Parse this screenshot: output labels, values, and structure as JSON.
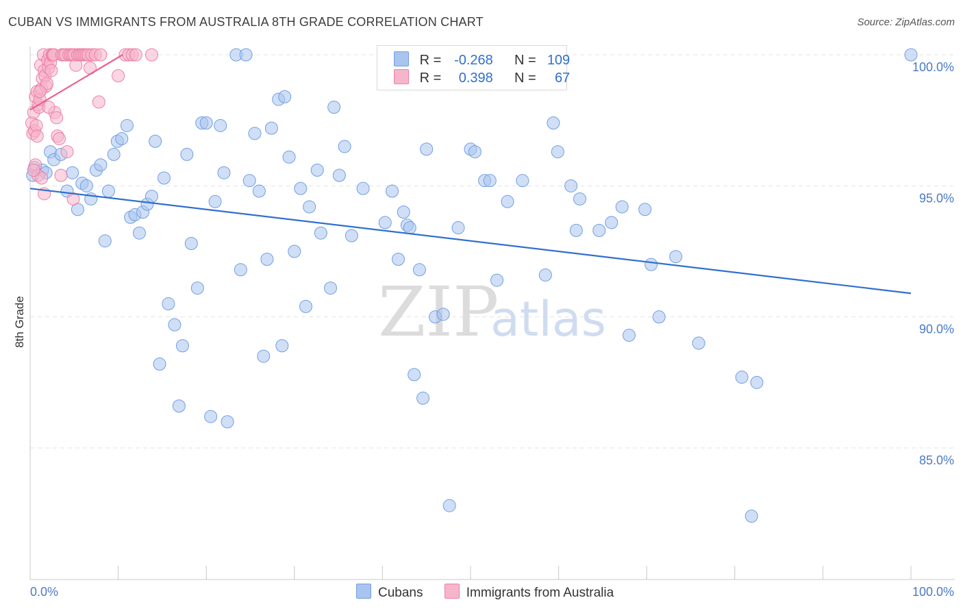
{
  "title": "CUBAN VS IMMIGRANTS FROM AUSTRALIA 8TH GRADE CORRELATION CHART",
  "source": "Source: ZipAtlas.com",
  "watermark": {
    "zip": "ZIP",
    "atlas": "atlas"
  },
  "legend": {
    "rows": [
      {
        "r_label": "R =",
        "r_value": "-0.268",
        "n_label": "N =",
        "n_value": "109",
        "color": "#a9c4ee"
      },
      {
        "r_label": "R =",
        "r_value": "0.398",
        "n_label": "N =",
        "n_value": "67",
        "color": "#f6b5ca"
      }
    ]
  },
  "bottom_legend": [
    {
      "label": "Cubans",
      "color": "#a9c4ee"
    },
    {
      "label": "Immigrants from Australia",
      "color": "#f6b5ca"
    }
  ],
  "chart_data": {
    "type": "scatter",
    "title": "CUBAN VS IMMIGRANTS FROM AUSTRALIA 8TH GRADE CORRELATION CHART",
    "xlabel": "",
    "ylabel": "8th Grade",
    "xlim": [
      0,
      100
    ],
    "ylim": [
      80.5,
      100.5
    ],
    "x_tick_labels": [
      "0.0%",
      "100.0%"
    ],
    "y_ticks": [
      85,
      90,
      95,
      100
    ],
    "y_tick_labels": [
      "85.0%",
      "90.0%",
      "95.0%",
      "100.0%"
    ],
    "grid": true,
    "series": [
      {
        "name": "Cubans",
        "color": "#6f9ee3",
        "fill": "#a9c4ee",
        "trend": {
          "x": [
            0,
            100
          ],
          "y": [
            94.9,
            90.9
          ],
          "color": "#2f6fd0"
        },
        "points": [
          [
            0.3,
            95.4
          ],
          [
            0.5,
            95.7
          ],
          [
            1.4,
            95.6
          ],
          [
            1.8,
            95.5
          ],
          [
            2.3,
            96.3
          ],
          [
            2.7,
            96.0
          ],
          [
            3.5,
            96.2
          ],
          [
            4.2,
            94.8
          ],
          [
            4.8,
            95.5
          ],
          [
            5.4,
            94.1
          ],
          [
            5.9,
            95.1
          ],
          [
            6.4,
            95.0
          ],
          [
            6.9,
            94.5
          ],
          [
            7.5,
            95.6
          ],
          [
            8.0,
            95.8
          ],
          [
            8.5,
            92.9
          ],
          [
            8.9,
            94.8
          ],
          [
            9.5,
            96.2
          ],
          [
            9.9,
            96.7
          ],
          [
            10.4,
            96.8
          ],
          [
            11.0,
            97.3
          ],
          [
            11.4,
            93.8
          ],
          [
            11.9,
            93.9
          ],
          [
            12.4,
            93.2
          ],
          [
            12.8,
            94.0
          ],
          [
            13.3,
            94.3
          ],
          [
            13.8,
            94.6
          ],
          [
            14.2,
            96.7
          ],
          [
            14.7,
            88.2
          ],
          [
            15.2,
            95.3
          ],
          [
            15.7,
            90.5
          ],
          [
            16.4,
            89.7
          ],
          [
            16.9,
            86.6
          ],
          [
            17.3,
            88.9
          ],
          [
            17.8,
            96.2
          ],
          [
            18.3,
            92.8
          ],
          [
            19.0,
            91.1
          ],
          [
            19.5,
            97.4
          ],
          [
            20.0,
            97.4
          ],
          [
            20.5,
            86.2
          ],
          [
            21.0,
            94.4
          ],
          [
            21.6,
            97.3
          ],
          [
            22.0,
            95.5
          ],
          [
            22.4,
            86.0
          ],
          [
            23.4,
            100.0
          ],
          [
            23.9,
            91.8
          ],
          [
            24.5,
            100.0
          ],
          [
            24.9,
            95.2
          ],
          [
            25.5,
            97.0
          ],
          [
            26.0,
            94.8
          ],
          [
            26.5,
            88.5
          ],
          [
            26.9,
            92.2
          ],
          [
            27.4,
            97.2
          ],
          [
            28.2,
            98.3
          ],
          [
            28.6,
            88.9
          ],
          [
            28.9,
            98.4
          ],
          [
            29.4,
            96.1
          ],
          [
            30.0,
            92.5
          ],
          [
            30.7,
            94.9
          ],
          [
            31.3,
            90.4
          ],
          [
            31.7,
            94.2
          ],
          [
            32.6,
            95.6
          ],
          [
            33.0,
            93.2
          ],
          [
            34.1,
            91.1
          ],
          [
            34.5,
            98.0
          ],
          [
            35.1,
            95.4
          ],
          [
            35.7,
            96.5
          ],
          [
            36.5,
            93.1
          ],
          [
            37.8,
            94.9
          ],
          [
            40.3,
            93.6
          ],
          [
            41.1,
            94.8
          ],
          [
            41.8,
            92.2
          ],
          [
            42.4,
            94.0
          ],
          [
            42.8,
            93.5
          ],
          [
            43.1,
            93.4
          ],
          [
            43.6,
            87.8
          ],
          [
            44.2,
            91.8
          ],
          [
            44.6,
            86.9
          ],
          [
            45.0,
            96.4
          ],
          [
            46.0,
            90.0
          ],
          [
            46.9,
            90.1
          ],
          [
            47.6,
            82.8
          ],
          [
            48.6,
            93.4
          ],
          [
            50.0,
            96.4
          ],
          [
            50.5,
            96.3
          ],
          [
            51.6,
            95.2
          ],
          [
            52.2,
            95.2
          ],
          [
            53.0,
            91.4
          ],
          [
            54.2,
            94.4
          ],
          [
            55.9,
            95.2
          ],
          [
            58.5,
            91.6
          ],
          [
            59.4,
            97.4
          ],
          [
            59.9,
            96.3
          ],
          [
            61.4,
            95.0
          ],
          [
            62.0,
            93.3
          ],
          [
            62.4,
            94.5
          ],
          [
            64.6,
            93.3
          ],
          [
            66.0,
            93.6
          ],
          [
            67.2,
            94.2
          ],
          [
            68.0,
            89.3
          ],
          [
            69.8,
            94.1
          ],
          [
            70.5,
            92.0
          ],
          [
            71.4,
            90.0
          ],
          [
            73.3,
            92.3
          ],
          [
            75.9,
            89.0
          ],
          [
            80.8,
            87.7
          ],
          [
            81.9,
            82.4
          ],
          [
            82.5,
            87.5
          ],
          [
            100.0,
            100.0
          ]
        ]
      },
      {
        "name": "Immigrants from Australia",
        "color": "#ec7fa3",
        "fill": "#f6b5ca",
        "trend": {
          "x": [
            0,
            10.5
          ],
          "y": [
            97.9,
            100.0
          ],
          "color": "#e8628f"
        },
        "points": [
          [
            0.2,
            97.4
          ],
          [
            0.3,
            97.0
          ],
          [
            0.4,
            97.8
          ],
          [
            0.5,
            97.1
          ],
          [
            0.6,
            98.4
          ],
          [
            0.7,
            97.3
          ],
          [
            0.8,
            98.6
          ],
          [
            0.9,
            98.1
          ],
          [
            1.0,
            98.0
          ],
          [
            1.1,
            98.3
          ],
          [
            1.2,
            99.6
          ],
          [
            1.3,
            98.7
          ],
          [
            1.4,
            99.1
          ],
          [
            1.5,
            100.0
          ],
          [
            1.6,
            99.4
          ],
          [
            1.7,
            99.2
          ],
          [
            1.8,
            98.8
          ],
          [
            1.9,
            98.9
          ],
          [
            2.0,
            99.8
          ],
          [
            2.1,
            99.5
          ],
          [
            2.2,
            100.0
          ],
          [
            2.3,
            99.7
          ],
          [
            2.4,
            99.4
          ],
          [
            2.5,
            100.0
          ],
          [
            2.6,
            100.0
          ],
          [
            2.7,
            100.0
          ],
          [
            2.8,
            97.8
          ],
          [
            3.0,
            97.6
          ],
          [
            3.1,
            96.9
          ],
          [
            3.3,
            96.8
          ],
          [
            3.6,
            100.0
          ],
          [
            3.8,
            100.0
          ],
          [
            4.0,
            100.0
          ],
          [
            4.2,
            96.3
          ],
          [
            4.4,
            100.0
          ],
          [
            4.6,
            100.0
          ],
          [
            4.8,
            100.0
          ],
          [
            5.0,
            100.0
          ],
          [
            5.2,
            99.6
          ],
          [
            5.4,
            100.0
          ],
          [
            5.6,
            100.0
          ],
          [
            5.8,
            100.0
          ],
          [
            6.0,
            100.0
          ],
          [
            6.2,
            100.0
          ],
          [
            6.4,
            100.0
          ],
          [
            6.6,
            100.0
          ],
          [
            6.8,
            99.5
          ],
          [
            7.0,
            100.0
          ],
          [
            7.4,
            100.0
          ],
          [
            7.8,
            98.2
          ],
          [
            8.0,
            100.0
          ],
          [
            10.0,
            99.2
          ],
          [
            10.8,
            100.0
          ],
          [
            11.2,
            100.0
          ],
          [
            11.6,
            100.0
          ],
          [
            12.0,
            100.0
          ],
          [
            13.8,
            100.0
          ],
          [
            0.6,
            95.8
          ],
          [
            0.9,
            95.4
          ],
          [
            1.3,
            95.3
          ],
          [
            1.6,
            94.7
          ],
          [
            3.5,
            95.4
          ],
          [
            4.9,
            94.5
          ],
          [
            0.4,
            95.6
          ],
          [
            0.8,
            96.9
          ],
          [
            2.1,
            98.0
          ],
          [
            1.1,
            98.6
          ]
        ]
      }
    ]
  }
}
